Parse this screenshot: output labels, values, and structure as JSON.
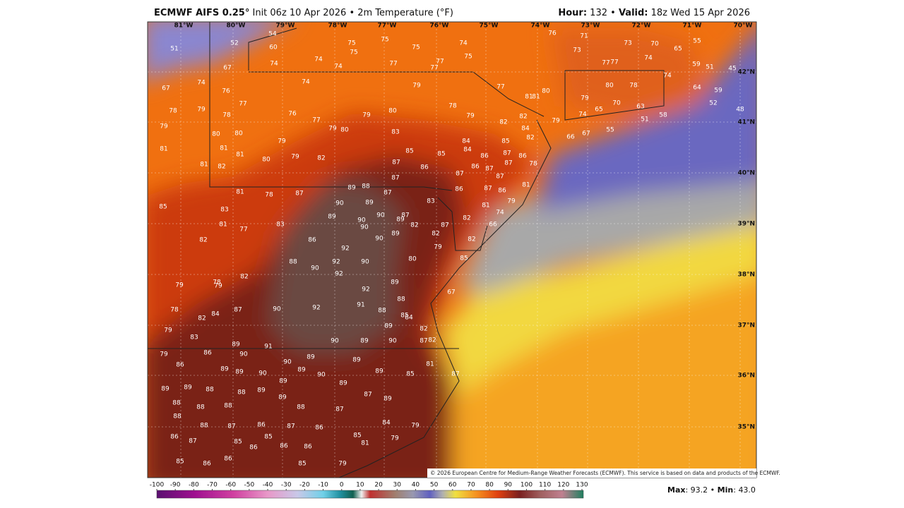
{
  "header": {
    "title": "ECMWF AIFS 0.25°",
    "init": "Init 06z 10 Apr 2026",
    "separator": "•",
    "field": "2m Temperature (°F)",
    "hour_label": "Hour:",
    "hour": "132",
    "valid_label": "Valid:",
    "valid": "18z Wed 15 Apr 2026"
  },
  "map": {
    "lon_labels": [
      "81°W",
      "80°W",
      "79°W",
      "78°W",
      "77°W",
      "76°W",
      "75°W",
      "74°W",
      "73°W",
      "72°W",
      "71°W",
      "70°W"
    ],
    "lat_labels": [
      "42°N",
      "41°N",
      "40°N",
      "39°N",
      "38°N",
      "37°N",
      "36°N",
      "35°N"
    ],
    "credit": "© 2026 European Centre for Medium-Range Weather Forecasts (ECMWF). This service is based on data and products of the ECMWF.",
    "temperatures": [
      54,
      52,
      60,
      51,
      67,
      74,
      74,
      74,
      75,
      75,
      75,
      75,
      74,
      75,
      77,
      77,
      77,
      74,
      74,
      67,
      76,
      79,
      77,
      81,
      81,
      80,
      76,
      71,
      73,
      73,
      70,
      65,
      55,
      74,
      77,
      77,
      59,
      51,
      45,
      74,
      80,
      78,
      79,
      70,
      63,
      58,
      51,
      64,
      59,
      52,
      48,
      78,
      79,
      78,
      77,
      76,
      77,
      79,
      80,
      78,
      79,
      82,
      79,
      65,
      74,
      55,
      67,
      66,
      82,
      84,
      82,
      79,
      80,
      80,
      79,
      80,
      83,
      79,
      81,
      81,
      81,
      80,
      79,
      82,
      82,
      81,
      84,
      84,
      85,
      85,
      85,
      86,
      87,
      86,
      87,
      86,
      87,
      87,
      86,
      78,
      87,
      87,
      87,
      81,
      78,
      87,
      89,
      88,
      87,
      86,
      87,
      86,
      81,
      85,
      83,
      90,
      89,
      89,
      90,
      90,
      89,
      87,
      83,
      79,
      81,
      74,
      81,
      77,
      83,
      90,
      89,
      82,
      87,
      82,
      66,
      90,
      82,
      82,
      86,
      92,
      82,
      79,
      88,
      90,
      92,
      92,
      90,
      80,
      85,
      82,
      78,
      79,
      79,
      92,
      89,
      67,
      88,
      88,
      91,
      92,
      90,
      87,
      78,
      84,
      82,
      84,
      85,
      79,
      83,
      89,
      82,
      90,
      89,
      90,
      89,
      90,
      91,
      79,
      86,
      89,
      90,
      89,
      87,
      82,
      81,
      86,
      89,
      89,
      90,
      89,
      90,
      89,
      85,
      87,
      89,
      89,
      88,
      88,
      89,
      89,
      89,
      87,
      89,
      88,
      88,
      88,
      89,
      88,
      87,
      88,
      88,
      87,
      86,
      87,
      86,
      84,
      79,
      86,
      87,
      85,
      85,
      85,
      81,
      79,
      86,
      86,
      86,
      86,
      85,
      86,
      85,
      79
    ]
  },
  "colorbar": {
    "ticks": [
      -100,
      -90,
      -80,
      -70,
      -60,
      -50,
      -40,
      -30,
      -20,
      -10,
      0,
      10,
      20,
      30,
      40,
      50,
      60,
      70,
      80,
      90,
      100,
      110,
      120,
      130
    ]
  },
  "footer": {
    "max_label": "Max",
    "max": "93.2",
    "separator": "•",
    "min_label": "Min",
    "min": "43.0"
  }
}
